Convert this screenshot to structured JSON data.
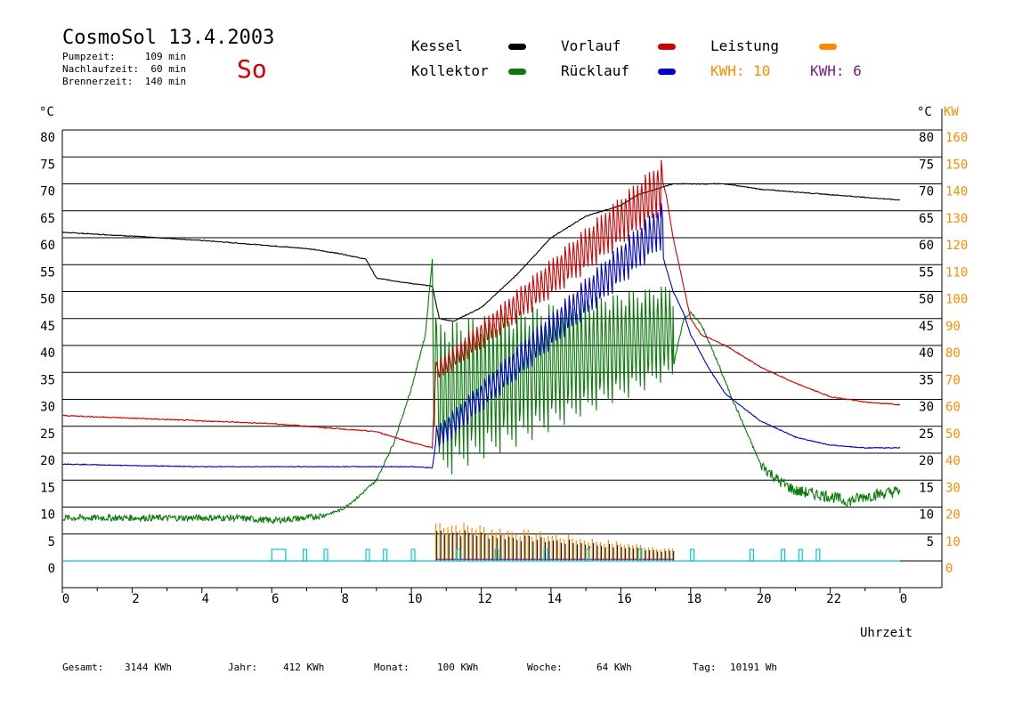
{
  "header": {
    "title": "CosmoSol 13.4.2003",
    "pumpzeit": "Pumpzeit:     109 min",
    "nachlaufzeit": "Nachlaufzeit:  60 min",
    "brennerzeit": "Brennerzeit:  140 min",
    "day": "So"
  },
  "legend": {
    "kessel": "Kessel",
    "kollektor": "Kollektor",
    "vorlauf": "Vorlauf",
    "ruecklauf": "Rücklauf",
    "leistung": "Leistung",
    "kwh1": "KWH: 10",
    "kwh2": "KWH: 6",
    "colors": {
      "kessel": "#000000",
      "kollektor": "#0a7a0a",
      "vorlauf": "#d00000",
      "ruecklauf": "#0000cc",
      "leistung": "#ff8c00",
      "kwh2": "#7b1a8c"
    }
  },
  "footer": {
    "gesamt_label": "Gesamt:",
    "gesamt_value": "3144 KWh",
    "jahr_label": "Jahr:",
    "jahr_value": "412 KWh",
    "monat_label": "Monat:",
    "monat_value": "100 KWh",
    "woche_label": "Woche:",
    "woche_value": "64 KWh",
    "tag_label": "Tag:",
    "tag_value": "10191 Wh"
  },
  "chart_data": {
    "type": "line",
    "xlabel": "Uhrzeit",
    "ylabel_left": "°C",
    "ylabel_right": "°C",
    "ylabel_right2": "KW",
    "xlim": [
      0,
      24
    ],
    "ylim": [
      0,
      80
    ],
    "x_ticks": [
      "0",
      "2",
      "4",
      "6",
      "8",
      "10",
      "12",
      "14",
      "16",
      "18",
      "20",
      "22",
      "0"
    ],
    "y_ticks_left": [
      "0",
      "5",
      "10",
      "15",
      "20",
      "25",
      "30",
      "35",
      "40",
      "45",
      "50",
      "55",
      "60",
      "65",
      "70",
      "75",
      "80"
    ],
    "y_ticks_right": [
      "5",
      "10",
      "15",
      "20",
      "25",
      "30",
      "35",
      "40",
      "45",
      "50",
      "55",
      "60",
      "65",
      "70",
      "75",
      "80"
    ],
    "y_ticks_kw": [
      "0",
      "10",
      "20",
      "30",
      "40",
      "50",
      "60",
      "70",
      "80",
      "90",
      "100",
      "110",
      "120",
      "130",
      "140",
      "150",
      "160"
    ],
    "grid": true,
    "series": [
      {
        "name": "Kessel",
        "color": "#000000",
        "x": [
          0,
          2,
          4,
          6,
          7,
          8,
          8.7,
          9,
          10,
          10.6,
          10.8,
          11.2,
          12,
          13,
          14,
          15,
          16,
          16.5,
          17,
          17.5,
          18,
          19,
          20,
          21,
          22,
          23,
          24
        ],
        "y": [
          61,
          60.3,
          59.5,
          58.5,
          58,
          57,
          56,
          52.5,
          51.5,
          51,
          45,
          44.5,
          47,
          53,
          60,
          64,
          66,
          68,
          69,
          70,
          70,
          70,
          69,
          68.5,
          68,
          67.5,
          67
        ]
      },
      {
        "name": "Kollektor",
        "color": "#0a7a0a",
        "x": [
          0,
          1,
          2,
          3,
          4,
          5,
          6,
          7,
          7.5,
          8,
          8.5,
          9,
          9.5,
          10,
          10.4,
          10.6,
          10.65,
          10.7,
          10.9,
          11,
          12,
          13,
          14,
          15,
          16,
          16.5,
          17,
          17.5,
          17.8,
          18,
          18.3,
          18.7,
          19.2,
          19.6,
          20,
          20.5,
          21,
          22,
          22.5,
          23,
          24
        ],
        "y": [
          8,
          8,
          8,
          8,
          8,
          8,
          7.5,
          8,
          8.5,
          9.5,
          12,
          15,
          22,
          32,
          42,
          56,
          20,
          45,
          16,
          40,
          19,
          25,
          30,
          34,
          38,
          42,
          46,
          36,
          45,
          46,
          44,
          38,
          30,
          24,
          18,
          15,
          13,
          12,
          11,
          12,
          13
        ],
        "osc_start": 10.7,
        "osc_end": 17.5,
        "osc_low": [
          15,
          34
        ],
        "osc_high": [
          45,
          52
        ]
      },
      {
        "name": "Vorlauf",
        "color": "#d00000",
        "x": [
          0,
          2,
          4,
          6,
          8,
          9,
          10,
          10.6,
          10.7,
          11,
          12,
          13,
          14,
          15,
          16,
          16.5,
          17,
          17.3,
          17.5,
          18,
          18.3,
          19,
          20,
          21,
          22,
          23,
          24
        ],
        "y": [
          27,
          26.5,
          26,
          25.5,
          24.5,
          24,
          22,
          21,
          36,
          33,
          42,
          53,
          60,
          65,
          66,
          67,
          75,
          68,
          60,
          45,
          42,
          40,
          36,
          33,
          30.5,
          29.5,
          29
        ],
        "osc_start": 10.7,
        "osc_end": 17.2,
        "osc_low": [
          33,
          64
        ],
        "osc_high": [
          37,
          75
        ]
      },
      {
        "name": "Rücklauf",
        "color": "#0000cc",
        "x": [
          0,
          2,
          4,
          6,
          8,
          10,
          10.6,
          10.7,
          11,
          12,
          13,
          14,
          15,
          16,
          16.5,
          17,
          17.5,
          17.8,
          18,
          18.5,
          19,
          20,
          21,
          22,
          23,
          24
        ],
        "y": [
          18,
          17.7,
          17.5,
          17.5,
          17.5,
          17.5,
          17.3,
          22,
          24,
          32,
          44,
          54,
          60,
          64,
          64,
          61,
          50,
          46,
          42,
          36,
          31,
          26,
          23,
          21.5,
          21,
          21
        ],
        "osc_start": 10.7,
        "osc_end": 17.2,
        "osc_low": [
          20,
          58
        ],
        "osc_high": [
          25,
          67
        ]
      },
      {
        "name": "Leistung",
        "color": "#ff8c00",
        "unit": "KW",
        "x": [
          10.7,
          17.5
        ],
        "y": [
          0,
          0
        ],
        "spikes_start": 10.7,
        "spikes_end": 17.5,
        "spike_max": [
          16,
          5
        ]
      }
    ],
    "status_pulses": [
      [
        6.0,
        6.4
      ],
      [
        6.9,
        7.0
      ],
      [
        7.5,
        7.6
      ],
      [
        8.7,
        8.8
      ],
      [
        9.2,
        9.3
      ],
      [
        10.0,
        10.1
      ],
      [
        11.3,
        11.4
      ],
      [
        12.4,
        12.5
      ],
      [
        13.8,
        13.9
      ],
      [
        15.0,
        15.1
      ],
      [
        16.5,
        16.6
      ],
      [
        18.0,
        18.1
      ],
      [
        19.7,
        19.8
      ],
      [
        20.6,
        20.7
      ],
      [
        21.1,
        21.2
      ],
      [
        21.6,
        21.7
      ]
    ]
  }
}
